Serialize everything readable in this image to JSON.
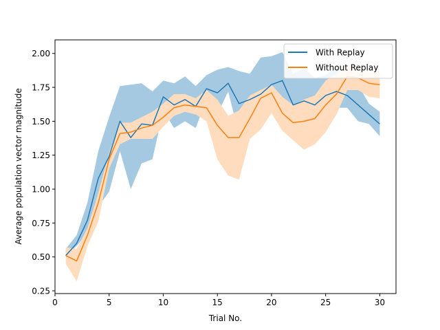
{
  "chart_data": {
    "type": "line",
    "title": "",
    "xlabel": "Trial No.",
    "ylabel": "Average population vector magnitude",
    "xlim": [
      0,
      31.5
    ],
    "ylim": [
      0.23,
      2.1
    ],
    "xticks": [
      0,
      5,
      10,
      15,
      20,
      25,
      30
    ],
    "yticks": [
      0.25,
      0.5,
      0.75,
      1.0,
      1.25,
      1.5,
      1.75,
      2.0
    ],
    "xtick_labels": [
      "0",
      "5",
      "10",
      "15",
      "20",
      "25",
      "30"
    ],
    "ytick_labels": [
      "0.25",
      "0.50",
      "0.75",
      "1.00",
      "1.25",
      "1.50",
      "1.75",
      "2.00"
    ],
    "grid": false,
    "legend_position": "top-right",
    "x": [
      1,
      2,
      3,
      4,
      5,
      6,
      7,
      8,
      9,
      10,
      11,
      12,
      13,
      14,
      15,
      16,
      17,
      18,
      19,
      20,
      21,
      22,
      23,
      24,
      25,
      26,
      27,
      28,
      29,
      30
    ],
    "series": [
      {
        "name": "With Replay",
        "color": "#1f77b4",
        "band_color": "#1f77b4",
        "band_opacity": 0.4,
        "values": [
          0.51,
          0.6,
          0.77,
          1.08,
          1.24,
          1.5,
          1.38,
          1.48,
          1.47,
          1.68,
          1.62,
          1.66,
          1.61,
          1.74,
          1.71,
          1.78,
          1.63,
          1.66,
          1.7,
          1.77,
          1.8,
          1.62,
          1.65,
          1.62,
          1.69,
          1.72,
          1.69,
          1.62,
          1.55,
          1.48
        ],
        "lower": [
          0.51,
          0.58,
          0.68,
          0.87,
          0.98,
          1.28,
          1.0,
          1.19,
          1.22,
          1.58,
          1.45,
          1.5,
          1.45,
          1.67,
          1.55,
          1.72,
          1.4,
          1.47,
          1.45,
          1.58,
          1.62,
          1.45,
          1.47,
          1.46,
          1.53,
          1.6,
          1.6,
          1.5,
          1.48,
          1.39
        ],
        "upper": [
          0.56,
          0.66,
          0.9,
          1.28,
          1.53,
          1.76,
          1.77,
          1.78,
          1.72,
          1.8,
          1.78,
          1.83,
          1.76,
          1.84,
          1.88,
          1.9,
          1.87,
          1.85,
          1.97,
          1.98,
          2.01,
          1.85,
          1.89,
          1.82,
          1.84,
          1.9,
          1.83,
          1.77,
          1.63,
          1.57
        ]
      },
      {
        "name": "Without Replay",
        "color": "#ff7f0e",
        "band_color": "#ffdcbd",
        "band_opacity": 1,
        "values": [
          0.51,
          0.47,
          0.66,
          0.9,
          1.22,
          1.41,
          1.42,
          1.45,
          1.47,
          1.53,
          1.6,
          1.62,
          1.61,
          1.6,
          1.47,
          1.38,
          1.38,
          1.52,
          1.67,
          1.71,
          1.56,
          1.49,
          1.5,
          1.52,
          1.62,
          1.7,
          1.83,
          1.82,
          1.78,
          1.77
        ],
        "lower": [
          0.45,
          0.32,
          0.58,
          0.76,
          1.15,
          1.33,
          1.37,
          1.37,
          1.37,
          1.46,
          1.54,
          1.57,
          1.55,
          1.5,
          1.22,
          1.1,
          1.07,
          1.37,
          1.44,
          1.56,
          1.43,
          1.36,
          1.29,
          1.33,
          1.42,
          1.55,
          1.73,
          1.73,
          1.68,
          1.67
        ],
        "upper": [
          0.57,
          0.56,
          0.71,
          0.97,
          1.27,
          1.49,
          1.49,
          1.53,
          1.57,
          1.63,
          1.7,
          1.7,
          1.67,
          1.73,
          1.66,
          1.54,
          1.58,
          1.69,
          1.73,
          1.77,
          1.68,
          1.62,
          1.66,
          1.69,
          1.8,
          1.85,
          1.92,
          1.89,
          1.86,
          1.87
        ]
      }
    ]
  }
}
